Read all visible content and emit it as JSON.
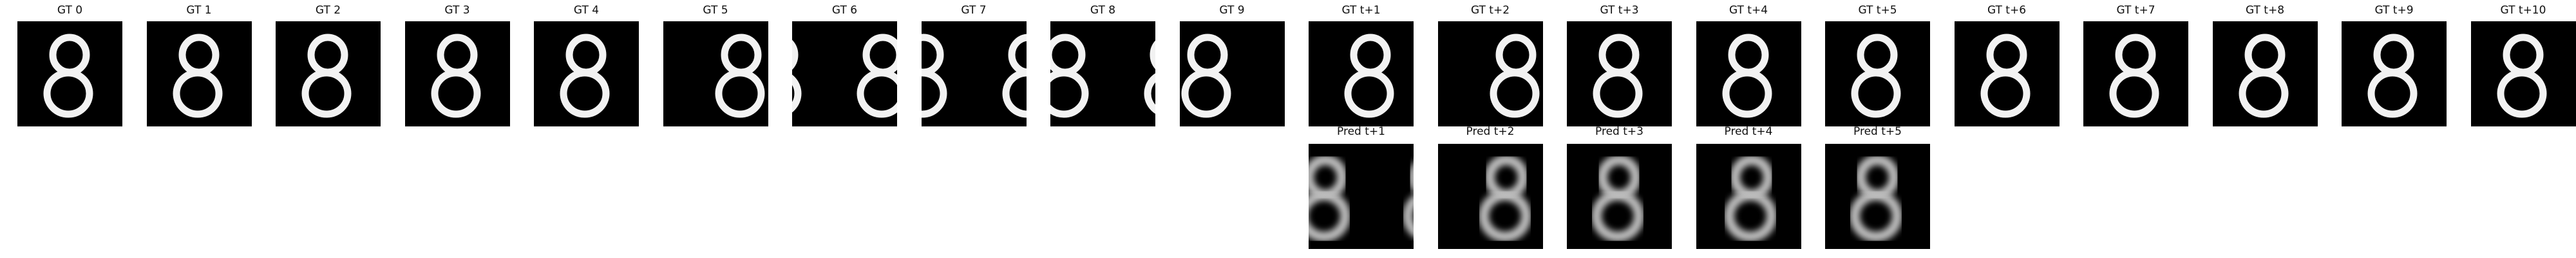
{
  "figure": {
    "gt_row": [
      {
        "label": "GT 0",
        "digit": "8",
        "style": "sharp"
      },
      {
        "label": "GT 1",
        "digit": "8",
        "style": "sharp"
      },
      {
        "label": "GT 2",
        "digit": "8",
        "style": "sharp"
      },
      {
        "label": "GT 3",
        "digit": "8",
        "style": "sharp"
      },
      {
        "label": "GT 4",
        "digit": "8",
        "style": "sharp"
      },
      {
        "label": "GT 5",
        "digit": "8",
        "style": "sharp"
      },
      {
        "label": "GT 6",
        "digit": "8",
        "style": "sharp"
      },
      {
        "label": "GT 7",
        "digit": "8",
        "style": "sharp"
      },
      {
        "label": "GT 8",
        "digit": "8",
        "style": "sharp"
      },
      {
        "label": "GT 9",
        "digit": "8",
        "style": "sharp"
      },
      {
        "label": "GT t+1",
        "digit": "8",
        "style": "sharp"
      },
      {
        "label": "GT t+2",
        "digit": "8",
        "style": "sharp"
      },
      {
        "label": "GT t+3",
        "digit": "8",
        "style": "sharp"
      },
      {
        "label": "GT t+4",
        "digit": "8",
        "style": "sharp"
      },
      {
        "label": "GT t+5",
        "digit": "8",
        "style": "sharp"
      },
      {
        "label": "GT t+6",
        "digit": "8",
        "style": "sharp"
      },
      {
        "label": "GT t+7",
        "digit": "8",
        "style": "sharp"
      },
      {
        "label": "GT t+8",
        "digit": "8",
        "style": "sharp"
      },
      {
        "label": "GT t+9",
        "digit": "8",
        "style": "sharp"
      },
      {
        "label": "GT t+10",
        "digit": "8",
        "style": "sharp"
      }
    ],
    "pred_row": [
      {
        "label": "Pred t+1",
        "digit": "8",
        "style": "blurry"
      },
      {
        "label": "Pred t+2",
        "digit": "8",
        "style": "blurry"
      },
      {
        "label": "Pred t+3",
        "digit": "8",
        "style": "blurry"
      },
      {
        "label": "Pred t+4",
        "digit": "8",
        "style": "blurry"
      },
      {
        "label": "Pred t+5",
        "digit": "8",
        "style": "blurry"
      }
    ]
  }
}
